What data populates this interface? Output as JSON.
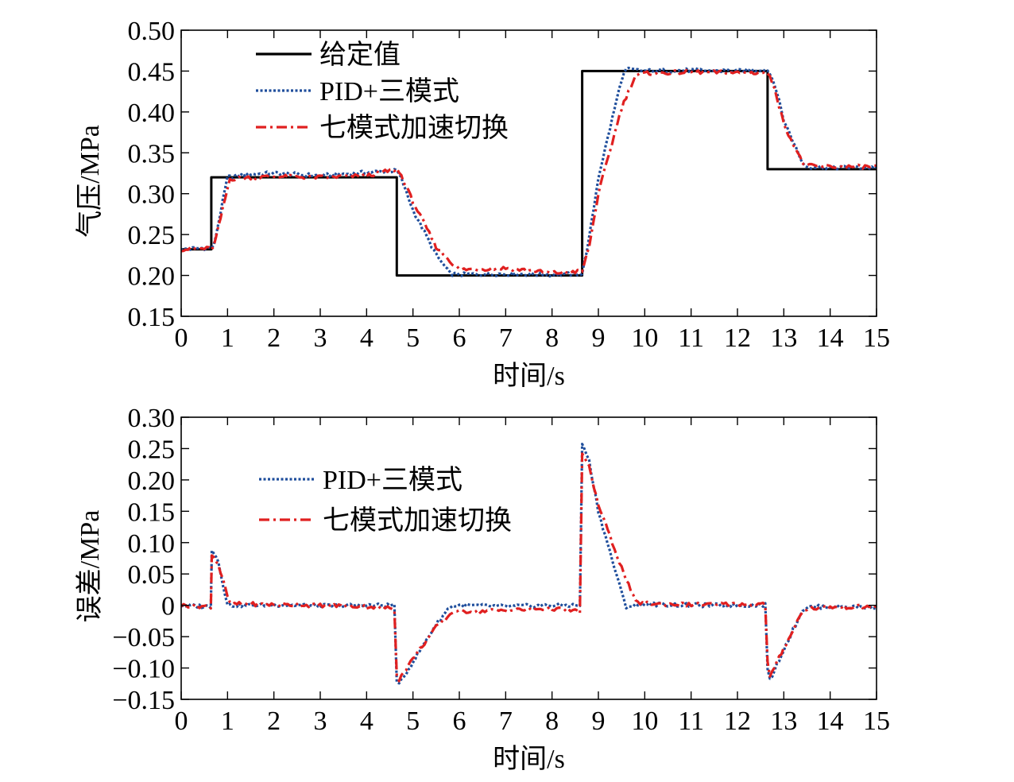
{
  "chart_data": [
    {
      "type": "line",
      "xlabel": "时间/s",
      "ylabel": "气压/MPa",
      "xlim": [
        0,
        15
      ],
      "ylim": [
        0.15,
        0.5
      ],
      "xticks": [
        0,
        1,
        2,
        3,
        4,
        5,
        6,
        7,
        8,
        9,
        10,
        11,
        12,
        13,
        14,
        15
      ],
      "xtick_labels": [
        "0",
        "1",
        "2",
        "3",
        "4",
        "5",
        "6",
        "7",
        "8",
        "9",
        "10",
        "11",
        "12",
        "13",
        "14",
        "15"
      ],
      "yticks": [
        0.15,
        0.2,
        0.25,
        0.3,
        0.35,
        0.4,
        0.45,
        0.5
      ],
      "ytick_labels": [
        "0.15",
        "0.20",
        "0.25",
        "0.30",
        "0.35",
        "0.40",
        "0.45",
        "0.50"
      ],
      "grid": false,
      "legend_position": "top-left",
      "series": [
        {
          "name": "给定值",
          "color": "#000000",
          "style": "solid",
          "x": [
            0,
            0.65,
            0.65,
            4.65,
            4.65,
            8.65,
            8.65,
            12.65,
            12.65,
            15
          ],
          "y": [
            0.232,
            0.232,
            0.32,
            0.32,
            0.2,
            0.2,
            0.45,
            0.45,
            0.33,
            0.33
          ]
        },
        {
          "name": "PID+三模式",
          "color": "#1f4e9c",
          "style": "dotted",
          "x": [
            0,
            0.65,
            0.7,
            1.0,
            1.5,
            2,
            3,
            4,
            4.65,
            4.75,
            5.0,
            5.5,
            5.8,
            6,
            7,
            8,
            8.65,
            8.8,
            9.0,
            9.5,
            9.6,
            10,
            11,
            12,
            12.65,
            12.8,
            13.0,
            13.4,
            13.5,
            14,
            15
          ],
          "y": [
            0.232,
            0.234,
            0.235,
            0.32,
            0.324,
            0.325,
            0.322,
            0.326,
            0.328,
            0.318,
            0.28,
            0.225,
            0.202,
            0.201,
            0.202,
            0.201,
            0.202,
            0.245,
            0.32,
            0.44,
            0.452,
            0.45,
            0.451,
            0.45,
            0.452,
            0.435,
            0.39,
            0.338,
            0.333,
            0.332,
            0.332
          ]
        },
        {
          "name": "七模式加速切换",
          "color": "#e02020",
          "style": "dashdot",
          "x": [
            0,
            0.65,
            0.7,
            1.05,
            1.5,
            2,
            3,
            4,
            4.65,
            4.75,
            5.0,
            5.5,
            5.9,
            6,
            7,
            8,
            8.65,
            8.8,
            9.0,
            9.5,
            9.8,
            10,
            11,
            12,
            12.65,
            12.8,
            13.0,
            13.4,
            13.5,
            14,
            15
          ],
          "y": [
            0.232,
            0.233,
            0.234,
            0.318,
            0.32,
            0.321,
            0.32,
            0.322,
            0.33,
            0.322,
            0.29,
            0.235,
            0.212,
            0.207,
            0.209,
            0.203,
            0.205,
            0.235,
            0.3,
            0.405,
            0.445,
            0.447,
            0.449,
            0.448,
            0.448,
            0.43,
            0.385,
            0.338,
            0.334,
            0.333,
            0.333
          ]
        }
      ]
    },
    {
      "type": "line",
      "xlabel": "时间/s",
      "ylabel": "误差/MPa",
      "xlim": [
        0,
        15
      ],
      "ylim": [
        -0.15,
        0.3
      ],
      "xticks": [
        0,
        1,
        2,
        3,
        4,
        5,
        6,
        7,
        8,
        9,
        10,
        11,
        12,
        13,
        14,
        15
      ],
      "xtick_labels": [
        "0",
        "1",
        "2",
        "3",
        "4",
        "5",
        "6",
        "7",
        "8",
        "9",
        "10",
        "11",
        "12",
        "13",
        "14",
        "15"
      ],
      "yticks": [
        -0.15,
        -0.1,
        -0.05,
        0,
        0.05,
        0.1,
        0.15,
        0.2,
        0.25,
        0.3
      ],
      "ytick_labels": [
        "−0.15",
        "−0.10",
        "−0.05",
        "0",
        "0.05",
        "0.10",
        "0.15",
        "0.20",
        "0.25",
        "0.30"
      ],
      "grid": false,
      "legend_position": "top-left",
      "series": [
        {
          "name": "PID+三模式",
          "color": "#1f4e9c",
          "style": "dotted",
          "x": [
            0,
            0.64,
            0.66,
            0.7,
            0.8,
            1.0,
            1.5,
            2,
            3,
            4,
            4.6,
            4.65,
            4.7,
            5.0,
            5.5,
            5.8,
            6,
            7,
            8,
            8.6,
            8.65,
            8.7,
            8.8,
            9.0,
            9.5,
            9.6,
            10,
            11,
            12,
            12.6,
            12.65,
            12.7,
            13.0,
            13.4,
            13.5,
            14,
            15
          ],
          "y": [
            0,
            -0.002,
            0.09,
            0.085,
            0.07,
            0.0,
            0.0,
            0.001,
            -0.001,
            0.0,
            0.0,
            -0.12,
            -0.127,
            -0.09,
            -0.03,
            -0.002,
            0.0,
            -0.002,
            0.0,
            0.0,
            0.255,
            0.25,
            0.23,
            0.15,
            0.02,
            -0.002,
            0.002,
            0.0,
            0.0,
            0.001,
            -0.1,
            -0.12,
            -0.07,
            -0.008,
            -0.003,
            -0.002,
            -0.003
          ]
        },
        {
          "name": "七模式加速切换",
          "color": "#e02020",
          "style": "dashdot",
          "x": [
            0,
            0.64,
            0.66,
            0.7,
            0.8,
            1.05,
            1.5,
            2,
            3,
            4,
            4.6,
            4.65,
            4.7,
            5.0,
            5.5,
            5.9,
            6,
            7,
            8,
            8.6,
            8.65,
            8.7,
            8.8,
            9.0,
            9.5,
            9.8,
            10,
            11,
            12,
            12.6,
            12.65,
            12.7,
            13.0,
            13.4,
            13.5,
            14,
            15
          ],
          "y": [
            0,
            -0.002,
            0.08,
            0.078,
            0.065,
            0.002,
            0.002,
            0.001,
            0.0,
            -0.002,
            -0.005,
            -0.11,
            -0.118,
            -0.085,
            -0.035,
            -0.008,
            -0.01,
            -0.008,
            -0.005,
            -0.01,
            0.24,
            0.235,
            0.22,
            0.16,
            0.06,
            0.005,
            0.003,
            0.001,
            0.002,
            0.002,
            -0.09,
            -0.115,
            -0.068,
            -0.01,
            -0.005,
            -0.003,
            -0.002
          ]
        }
      ]
    }
  ]
}
